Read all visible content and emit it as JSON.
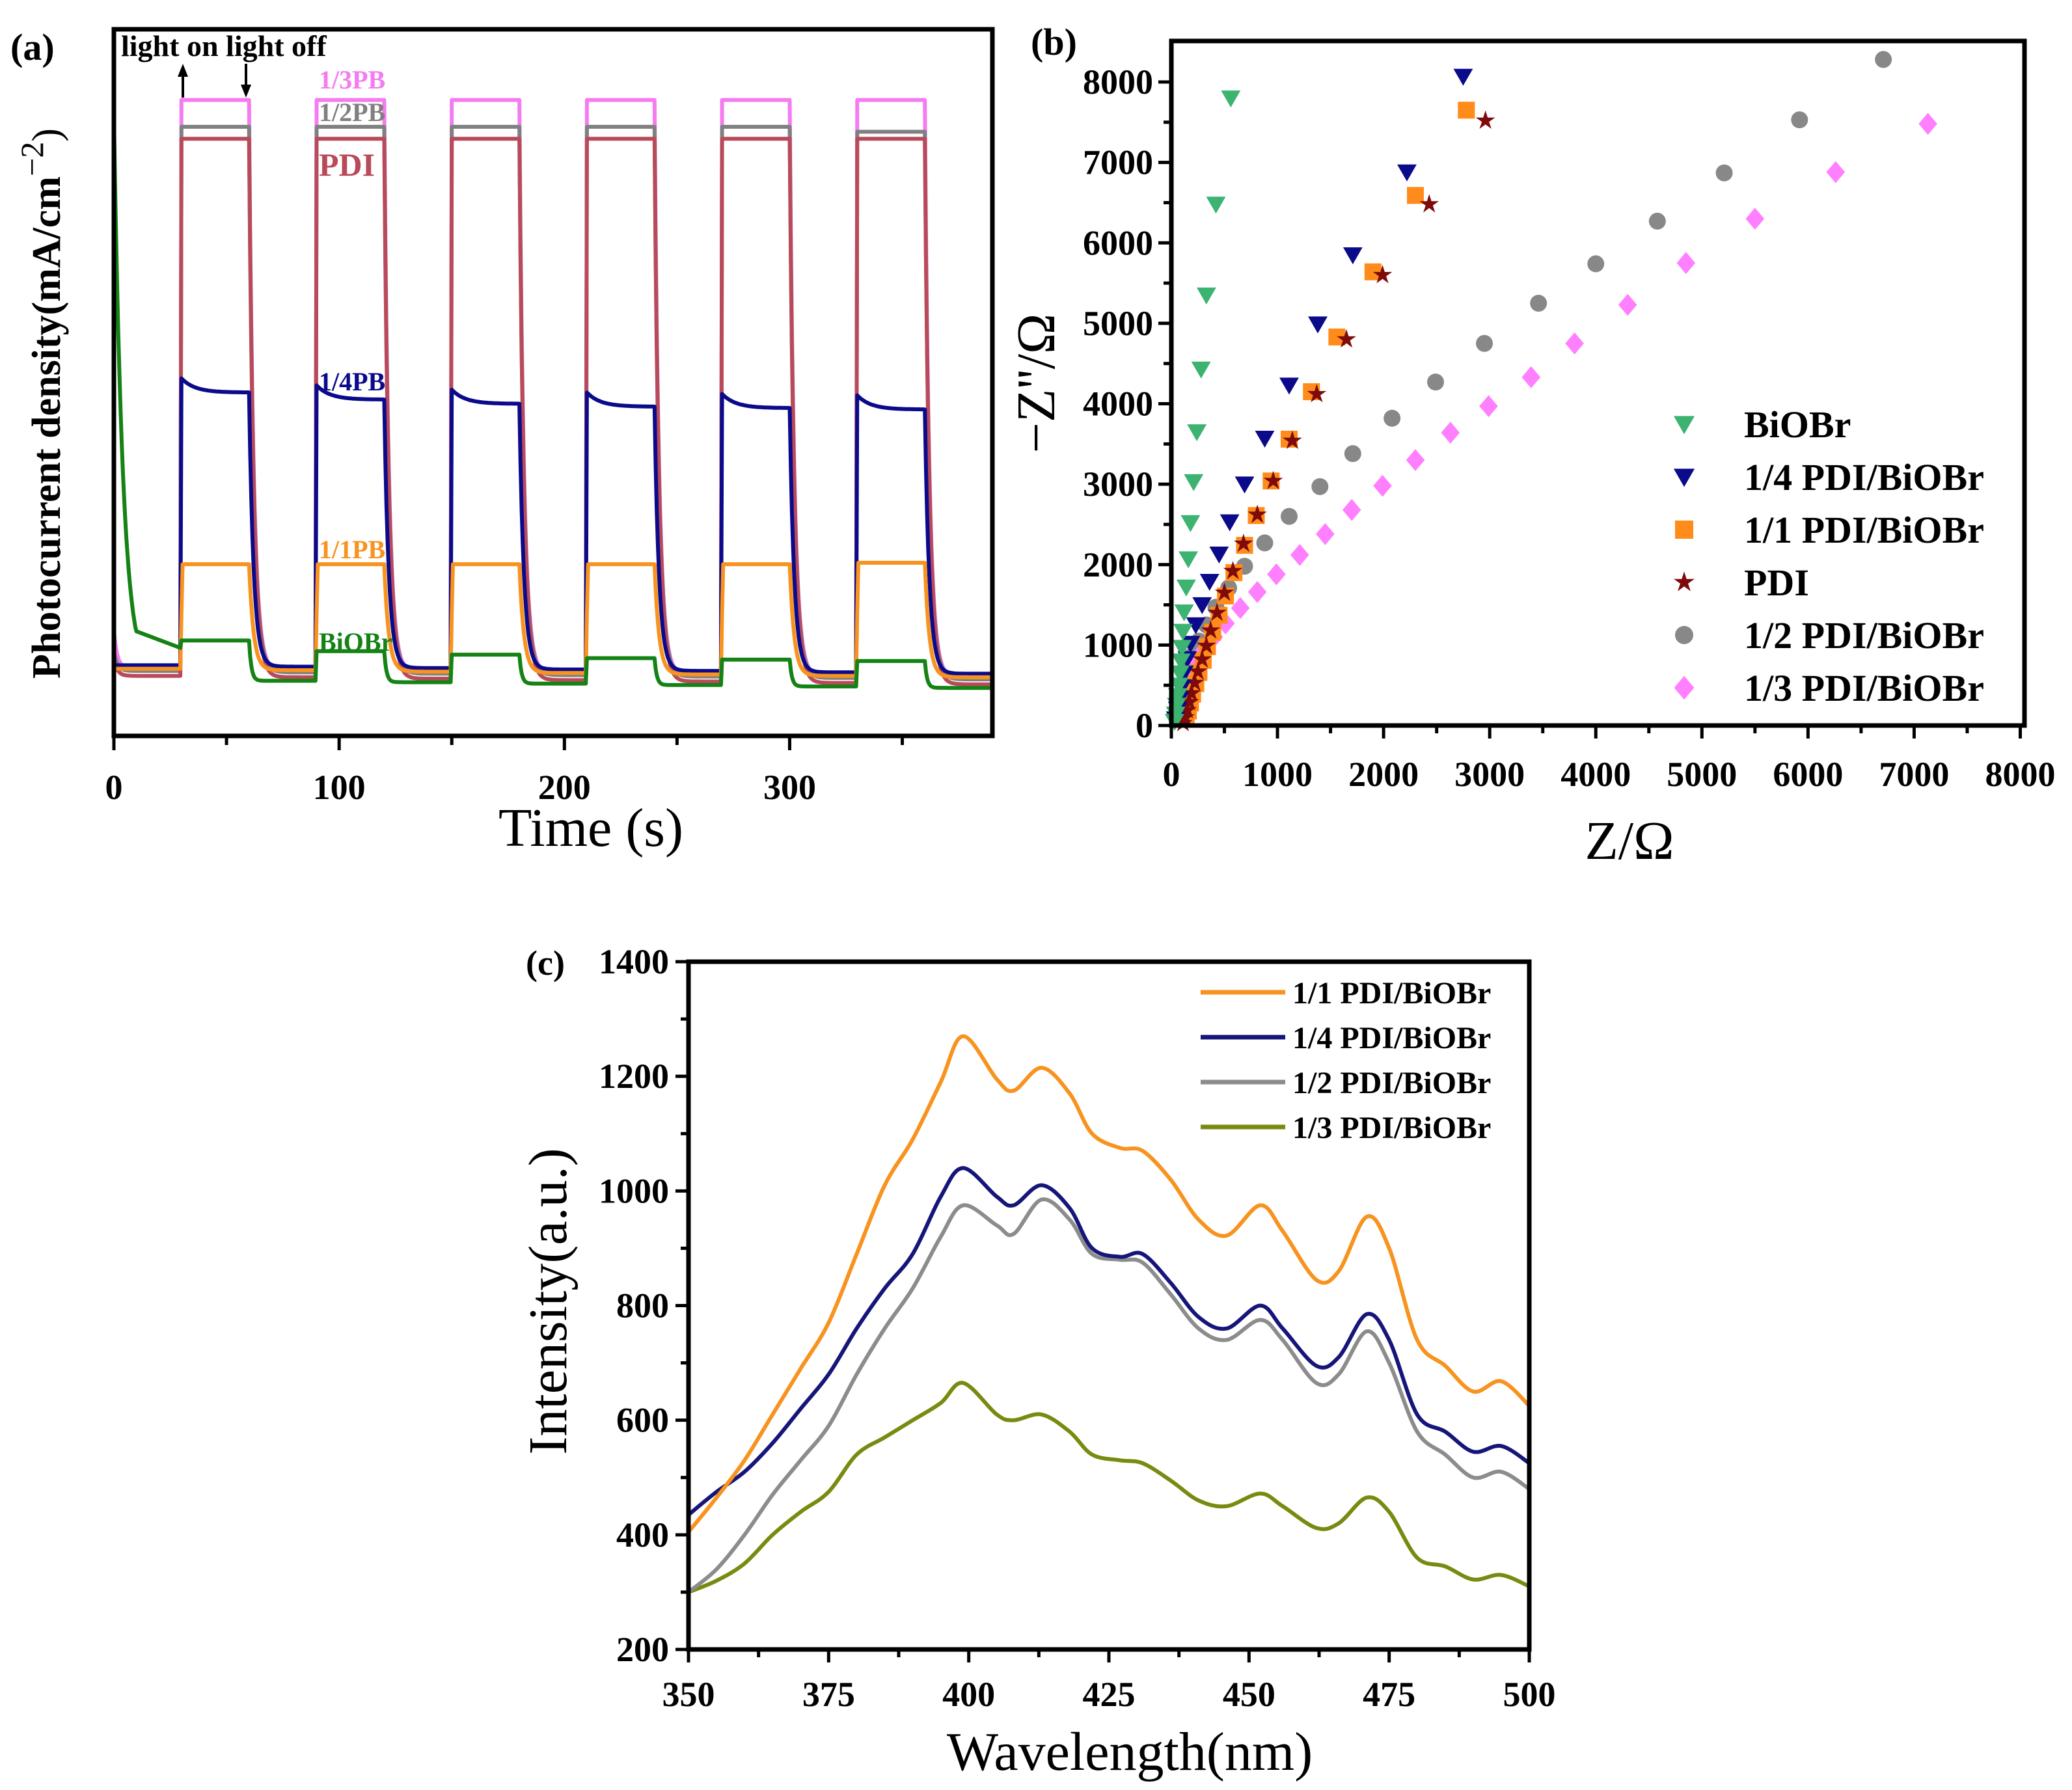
{
  "chart_data": [
    {
      "panel": "(a)",
      "type": "line",
      "title": "",
      "xlabel": "Time (s)",
      "ylabel": "Photocurrent density(mA/cm",
      "ylabel_sup": "−2",
      "ylabel_close": ")",
      "xlim": [
        0,
        390
      ],
      "ylim": [
        0,
        1
      ],
      "y_units": "normalized (axis has no tick labels)",
      "xticks": [
        0,
        100,
        200,
        300
      ],
      "xtick_labels": [
        "0",
        "100",
        "200",
        "300"
      ],
      "annotation": "light on light off",
      "light_on_s": [
        30,
        90,
        150,
        210,
        270,
        330
      ],
      "light_off_s": [
        60,
        120,
        180,
        240,
        300,
        360
      ],
      "series": [
        {
          "name": "1/3PB",
          "label": "1/3PB",
          "color": "#f57bf0",
          "on_levels": [
            0.9,
            0.9,
            0.9,
            0.9,
            0.9,
            0.9
          ],
          "dark_level": 0.095,
          "start": 0.15
        },
        {
          "name": "1/2PB",
          "label": "1/2PB",
          "color": "#808080",
          "on_levels": [
            0.862,
            0.862,
            0.862,
            0.862,
            0.862,
            0.855
          ],
          "dark_level": 0.092,
          "start": 0.12
        },
        {
          "name": "PDI",
          "label": "PDI",
          "color": "#b94a5a",
          "on_levels": [
            0.845,
            0.845,
            0.845,
            0.845,
            0.845,
            0.845
          ],
          "dark_level": 0.085,
          "start": 0.11
        },
        {
          "name": "1/4PB",
          "label": "1/4PB",
          "color": "#0a0a8a",
          "on_levels": [
            0.486,
            0.476,
            0.47,
            0.466,
            0.464,
            0.462
          ],
          "dark_level": 0.1,
          "start": 0.1
        },
        {
          "name": "1/1PB",
          "label": "1/1PB",
          "color": "#f7931e",
          "on_levels": [
            0.243,
            0.243,
            0.243,
            0.243,
            0.243,
            0.245
          ],
          "dark_level": 0.095,
          "start": 0.095
        },
        {
          "name": "BiOBr",
          "label": "BiOBr",
          "color": "#148214",
          "on_levels": [
            0.135,
            0.12,
            0.115,
            0.11,
            0.108,
            0.106
          ],
          "dark_level": 0.08,
          "start": 0.88
        }
      ]
    },
    {
      "panel": "(b)",
      "type": "scatter",
      "title": "",
      "xlabel": "Z/Ω",
      "ylabel": "−Z''/Ω",
      "xlim": [
        0,
        8040
      ],
      "ylim": [
        0,
        8510
      ],
      "xticks": [
        0,
        1000,
        2000,
        3000,
        4000,
        5000,
        6000,
        7000,
        8000
      ],
      "yticks": [
        0,
        1000,
        2000,
        3000,
        4000,
        5000,
        6000,
        7000,
        8000
      ],
      "legend_position": "bottom-right",
      "series": [
        {
          "name": "BiOBr",
          "marker": "triangle-down",
          "color": "#3cb371",
          "points": [
            [
              560,
              7800
            ],
            [
              420,
              6480
            ],
            [
              330,
              5350
            ],
            [
              280,
              4430
            ],
            [
              240,
              3650
            ],
            [
              210,
              3030
            ],
            [
              180,
              2520
            ],
            [
              160,
              2070
            ],
            [
              140,
              1720
            ],
            [
              120,
              1410
            ],
            [
              110,
              1170
            ],
            [
              100,
              970
            ],
            [
              90,
              800
            ],
            [
              80,
              650
            ],
            [
              70,
              500
            ],
            [
              60,
              370
            ],
            [
              50,
              250
            ],
            [
              40,
              140
            ],
            [
              30,
              50
            ]
          ]
        },
        {
          "name": "1/4 PDI/BiOBr",
          "marker": "triangle-down",
          "color": "#0a0a8a",
          "points": [
            [
              2750,
              8070
            ],
            [
              2220,
              6880
            ],
            [
              1710,
              5850
            ],
            [
              1380,
              4990
            ],
            [
              1110,
              4230
            ],
            [
              880,
              3570
            ],
            [
              690,
              3000
            ],
            [
              550,
              2530
            ],
            [
              450,
              2130
            ],
            [
              360,
              1790
            ],
            [
              290,
              1500
            ],
            [
              230,
              1250
            ],
            [
              180,
              1020
            ],
            [
              150,
              830
            ],
            [
              120,
              650
            ],
            [
              100,
              480
            ],
            [
              80,
              330
            ],
            [
              60,
              200
            ],
            [
              40,
              80
            ]
          ]
        },
        {
          "name": "1/1 PDI/BiOBr",
          "marker": "square",
          "color": "#ff8c1a",
          "points": [
            [
              2780,
              7650
            ],
            [
              2300,
              6590
            ],
            [
              1900,
              5640
            ],
            [
              1560,
              4830
            ],
            [
              1320,
              4150
            ],
            [
              1110,
              3560
            ],
            [
              940,
              3040
            ],
            [
              800,
              2610
            ],
            [
              690,
              2240
            ],
            [
              590,
              1900
            ],
            [
              510,
              1610
            ],
            [
              450,
              1370
            ],
            [
              390,
              1160
            ],
            [
              340,
              980
            ],
            [
              300,
              810
            ],
            [
              260,
              660
            ],
            [
              230,
              520
            ],
            [
              200,
              390
            ],
            [
              180,
              280
            ],
            [
              160,
              180
            ],
            [
              140,
              90
            ]
          ]
        },
        {
          "name": "PDI",
          "marker": "star",
          "color": "#7f0a0a",
          "points": [
            [
              2960,
              7520
            ],
            [
              2430,
              6480
            ],
            [
              1990,
              5600
            ],
            [
              1650,
              4800
            ],
            [
              1370,
              4120
            ],
            [
              1140,
              3540
            ],
            [
              960,
              3040
            ],
            [
              810,
              2620
            ],
            [
              680,
              2260
            ],
            [
              580,
              1920
            ],
            [
              500,
              1650
            ],
            [
              430,
              1400
            ],
            [
              370,
              1180
            ],
            [
              330,
              990
            ],
            [
              290,
              820
            ],
            [
              250,
              670
            ],
            [
              220,
              530
            ],
            [
              190,
              400
            ],
            [
              170,
              290
            ],
            [
              150,
              190
            ],
            [
              130,
              100
            ],
            [
              110,
              30
            ]
          ]
        },
        {
          "name": "1/2 PDI/BiOBr",
          "marker": "circle",
          "color": "#888888",
          "points": [
            [
              6710,
              8280
            ],
            [
              5920,
              7530
            ],
            [
              5210,
              6870
            ],
            [
              4580,
              6270
            ],
            [
              4000,
              5740
            ],
            [
              3460,
              5250
            ],
            [
              2950,
              4750
            ],
            [
              2490,
              4270
            ],
            [
              2080,
              3820
            ],
            [
              1710,
              3380
            ],
            [
              1400,
              2970
            ],
            [
              1110,
              2600
            ],
            [
              880,
              2270
            ],
            [
              690,
              1980
            ],
            [
              540,
              1710
            ],
            [
              420,
              1470
            ],
            [
              330,
              1250
            ],
            [
              260,
              1050
            ],
            [
              200,
              870
            ],
            [
              160,
              700
            ],
            [
              130,
              540
            ],
            [
              100,
              390
            ],
            [
              80,
              250
            ],
            [
              60,
              130
            ]
          ]
        },
        {
          "name": "1/3 PDI/BiOBr",
          "marker": "diamond",
          "color": "#ff80ff",
          "points": [
            [
              7130,
              7480
            ],
            [
              6260,
              6880
            ],
            [
              5500,
              6300
            ],
            [
              4850,
              5750
            ],
            [
              4300,
              5230
            ],
            [
              3800,
              4750
            ],
            [
              3390,
              4330
            ],
            [
              2990,
              3970
            ],
            [
              2630,
              3640
            ],
            [
              2300,
              3300
            ],
            [
              1990,
              2980
            ],
            [
              1700,
              2680
            ],
            [
              1450,
              2380
            ],
            [
              1210,
              2120
            ],
            [
              990,
              1880
            ],
            [
              810,
              1660
            ],
            [
              650,
              1460
            ],
            [
              510,
              1270
            ],
            [
              400,
              1100
            ],
            [
              310,
              930
            ],
            [
              240,
              770
            ],
            [
              190,
              620
            ],
            [
              150,
              480
            ],
            [
              120,
              340
            ],
            [
              90,
              210
            ],
            [
              70,
              100
            ]
          ]
        }
      ]
    },
    {
      "panel": "(c)",
      "type": "line",
      "title": "",
      "xlabel": "Wavelength(nm)",
      "ylabel": "Intensity(a.u.)",
      "xlim": [
        350,
        500
      ],
      "ylim": [
        200,
        1400
      ],
      "xticks": [
        350,
        375,
        400,
        425,
        450,
        475,
        500
      ],
      "yticks": [
        200,
        400,
        600,
        800,
        1000,
        1200,
        1400
      ],
      "legend_position": "top-right",
      "x": [
        350,
        355,
        360,
        365,
        370,
        375,
        380,
        385,
        390,
        395,
        399,
        405,
        408,
        413,
        418,
        422,
        427,
        431,
        436,
        441,
        446,
        452,
        456,
        462,
        466,
        471,
        475,
        480,
        485,
        490,
        495,
        500
      ],
      "series": [
        {
          "name": "1/1 PDI/BiOBr",
          "color": "#f7931e",
          "values": [
            405,
            465,
            530,
            610,
            690,
            770,
            890,
            1010,
            1090,
            1190,
            1270,
            1195,
            1175,
            1215,
            1170,
            1100,
            1075,
            1070,
            1020,
            950,
            922,
            975,
            930,
            845,
            860,
            955,
            900,
            740,
            695,
            650,
            668,
            625
          ]
        },
        {
          "name": "1/4 PDI/BiOBr",
          "color": "#16167a",
          "values": [
            435,
            475,
            510,
            560,
            620,
            680,
            760,
            830,
            890,
            990,
            1040,
            990,
            975,
            1010,
            970,
            900,
            885,
            890,
            840,
            780,
            760,
            800,
            760,
            695,
            710,
            785,
            740,
            610,
            580,
            545,
            555,
            525
          ]
        },
        {
          "name": "1/2 PDI/BiOBr",
          "color": "#8c8c8c",
          "values": [
            300,
            340,
            400,
            470,
            530,
            590,
            680,
            760,
            830,
            920,
            975,
            940,
            925,
            985,
            950,
            890,
            880,
            875,
            820,
            760,
            740,
            775,
            740,
            665,
            680,
            755,
            700,
            580,
            540,
            500,
            510,
            480
          ]
        },
        {
          "name": "1/3 PDI/BiOBr",
          "color": "#7a8a10",
          "values": [
            300,
            320,
            350,
            400,
            440,
            475,
            540,
            570,
            600,
            630,
            665,
            610,
            600,
            610,
            580,
            540,
            530,
            525,
            495,
            460,
            450,
            472,
            450,
            412,
            420,
            465,
            440,
            360,
            345,
            322,
            330,
            310
          ]
        }
      ]
    }
  ]
}
